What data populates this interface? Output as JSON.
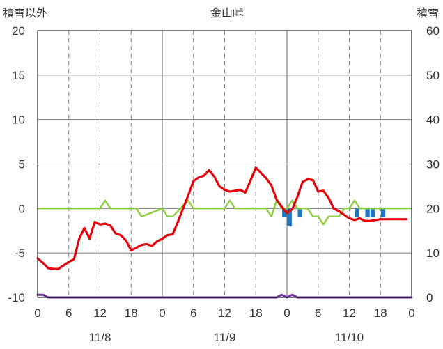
{
  "chart_data": {
    "type": "line",
    "title": "金山峠",
    "ylabel_left": "積雪以外",
    "ylabel_right": "積雪",
    "ylim_left": [
      -10,
      20
    ],
    "ylim_right": [
      0,
      60
    ],
    "yticks_left": [
      "20",
      "15",
      "10",
      "5",
      "0",
      "-5",
      "-10"
    ],
    "yticks_right": [
      "60",
      "50",
      "40",
      "30",
      "20",
      "10",
      "0"
    ],
    "xlim_hours": [
      0,
      72
    ],
    "xticks": [
      "0",
      "6",
      "12",
      "18",
      "0",
      "6",
      "12",
      "18",
      "0",
      "6",
      "12",
      "18",
      "0"
    ],
    "date_labels": [
      "11/8",
      "11/9",
      "11/10"
    ],
    "grid": true,
    "colors": {
      "temperature": "#e8000b",
      "green_line": "#8cd040",
      "precip_bars": "#1f77c4",
      "snow": "#7030a0"
    },
    "series": [
      {
        "name": "",
        "role": "temperature",
        "axis": "left",
        "x": [
          0,
          1,
          2,
          3,
          4,
          5,
          6,
          7,
          8,
          9,
          10,
          11,
          12,
          13,
          14,
          15,
          16,
          17,
          18,
          19,
          20,
          21,
          22,
          23,
          24,
          25,
          26,
          27,
          28,
          29,
          30,
          31,
          32,
          33,
          34,
          35,
          36,
          37,
          38,
          39,
          40,
          41,
          42,
          43,
          44,
          45,
          46,
          47,
          48,
          49,
          50,
          51,
          52,
          53,
          54,
          55,
          56,
          57,
          58,
          59,
          60,
          61,
          62,
          63,
          64,
          65,
          66,
          67,
          68,
          69,
          70,
          71
        ],
        "values": [
          -5.6,
          -6.1,
          -6.7,
          -6.8,
          -6.8,
          -6.4,
          -6.0,
          -5.7,
          -3.4,
          -2.2,
          -3.4,
          -1.5,
          -1.8,
          -1.7,
          -1.9,
          -2.8,
          -3.0,
          -3.6,
          -4.7,
          -4.4,
          -4.1,
          -4.0,
          -4.2,
          -3.7,
          -3.4,
          -3.0,
          -2.9,
          -1.5,
          0.0,
          1.5,
          3.1,
          3.5,
          3.7,
          4.3,
          3.6,
          2.5,
          2.1,
          1.9,
          2.0,
          2.1,
          1.8,
          3.2,
          4.6,
          4.0,
          3.4,
          2.6,
          1.0,
          0.2,
          -0.5,
          -0.1,
          1.3,
          3.0,
          3.3,
          3.2,
          1.9,
          2.0,
          1.2,
          0.0,
          -0.3,
          -0.7,
          -1.1,
          -1.3,
          -1.1,
          -1.4,
          -1.4,
          -1.3,
          -1.2,
          -1.2,
          -1.2,
          -1.2,
          -1.2,
          -1.2
        ]
      },
      {
        "name": "",
        "role": "green_line",
        "axis": "left",
        "x": [
          0,
          12,
          13,
          14,
          19,
          20,
          24,
          25,
          26,
          29,
          30,
          36,
          37,
          38,
          44,
          45,
          46,
          47,
          48,
          49,
          50,
          52,
          53,
          54,
          55,
          56,
          57,
          58,
          59,
          60,
          61,
          62,
          63,
          64,
          65,
          66,
          67,
          68,
          69,
          70,
          71,
          72
        ],
        "values": [
          0,
          0,
          0.9,
          0,
          0,
          -0.9,
          0,
          -0.9,
          -0.9,
          0.9,
          0,
          0,
          0.9,
          0,
          0,
          -0.9,
          0.9,
          0,
          0,
          0.9,
          0,
          0,
          -0.9,
          -0.9,
          -1.8,
          -0.9,
          -0.9,
          -0.9,
          0,
          0,
          0.9,
          0,
          0,
          0,
          0,
          0,
          0,
          0,
          0,
          0,
          0,
          0
        ]
      },
      {
        "name": "",
        "role": "precip_bars",
        "axis": "left",
        "type": "bar",
        "x": [
          47,
          48,
          50,
          61,
          63,
          64,
          66
        ],
        "values": [
          -1.0,
          -2.0,
          -1.0,
          -1.0,
          -1.0,
          -1.0,
          -1.0
        ]
      },
      {
        "name": "",
        "role": "snow",
        "axis": "right",
        "x": [
          0,
          1,
          2,
          46,
          47,
          48,
          49,
          50,
          72
        ],
        "values": [
          0.6,
          0.6,
          0,
          0,
          0.6,
          0,
          0.6,
          0,
          0
        ]
      }
    ]
  }
}
